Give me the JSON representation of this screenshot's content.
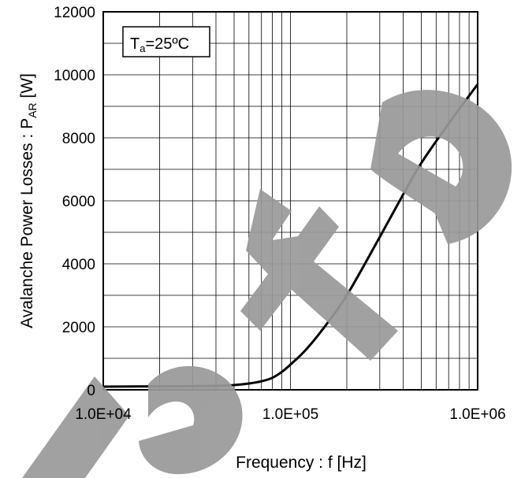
{
  "chart_data": {
    "type": "line",
    "xscale": "log",
    "xlim": [
      10000,
      1000000
    ],
    "ylim": [
      0,
      12000
    ],
    "grid": true,
    "xlabel": "Frequency : f [Hz]",
    "ylabel": {
      "main": "Avalanche Power Losses : P",
      "sub": "AR",
      "unit": " [W]"
    },
    "annotation": {
      "main": "T",
      "sub": "a",
      "rest": "=25ºC"
    },
    "xticks": [
      {
        "value": 10000,
        "label": "1.0E+04"
      },
      {
        "value": 100000,
        "label": "1.0E+05"
      },
      {
        "value": 1000000,
        "label": "1.0E+06"
      }
    ],
    "yticks": [
      {
        "value": 0,
        "label": "0"
      },
      {
        "value": 2000,
        "label": "2000"
      },
      {
        "value": 4000,
        "label": "4000"
      },
      {
        "value": 6000,
        "label": "6000"
      },
      {
        "value": 8000,
        "label": "8000"
      },
      {
        "value": 10000,
        "label": "10000"
      },
      {
        "value": 12000,
        "label": "12000"
      }
    ],
    "series": [
      {
        "x": [
          10000,
          20000,
          30000,
          40000,
          50000,
          60000,
          70000,
          80000,
          90000,
          100000,
          120000,
          150000,
          200000,
          300000,
          400000,
          500000,
          700000,
          1000000
        ],
        "y": [
          100,
          110,
          115,
          125,
          150,
          200,
          270,
          380,
          570,
          800,
          1250,
          1950,
          3000,
          4850,
          6200,
          7200,
          8450,
          9700
        ]
      }
    ],
    "line_color": "#000000",
    "watermark_word": "Delete",
    "watermark_color": "#999999"
  }
}
